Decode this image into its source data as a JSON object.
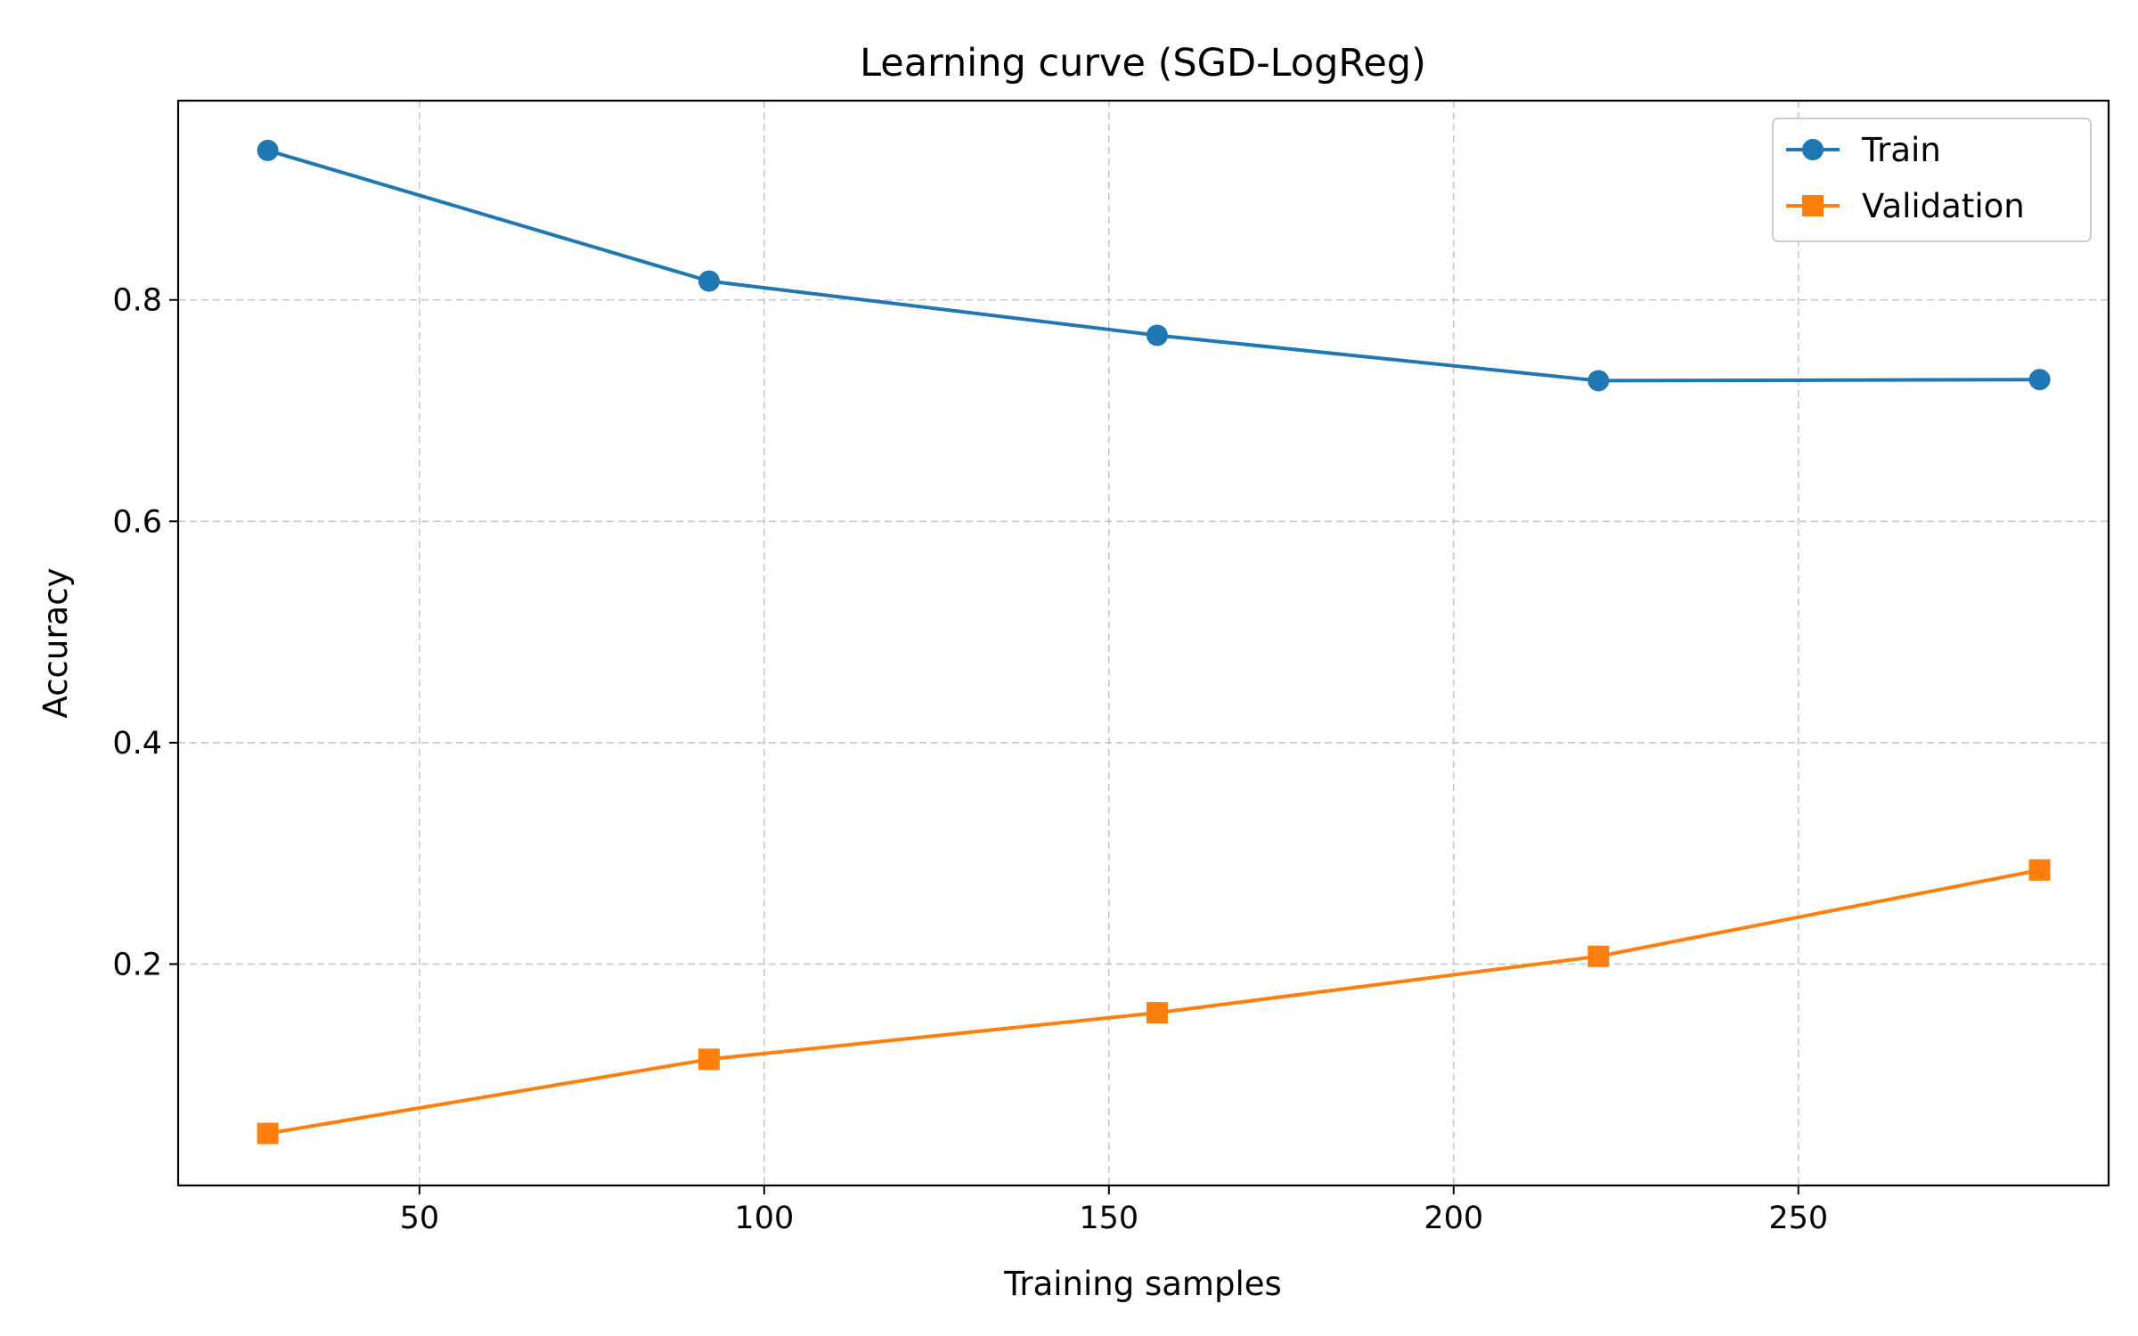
{
  "chart_data": {
    "type": "line",
    "title": "Learning curve (SGD-LogReg)",
    "xlabel": "Training samples",
    "ylabel": "Accuracy",
    "xlim": [
      15,
      295
    ],
    "ylim": [
      0.0,
      0.98
    ],
    "xticks": [
      50,
      100,
      150,
      200,
      250
    ],
    "yticks": [
      0.2,
      0.4,
      0.6,
      0.8
    ],
    "x": [
      28,
      92,
      157,
      221,
      285
    ],
    "grid": true,
    "legend_position": "top-right",
    "series": [
      {
        "name": "Train",
        "color": "#1f77b4",
        "marker": "circle",
        "values": [
          0.935,
          0.817,
          0.768,
          0.727,
          0.728
        ]
      },
      {
        "name": "Validation",
        "color": "#ff7f0e",
        "marker": "square",
        "values": [
          0.047,
          0.114,
          0.156,
          0.207,
          0.285
        ]
      }
    ]
  }
}
